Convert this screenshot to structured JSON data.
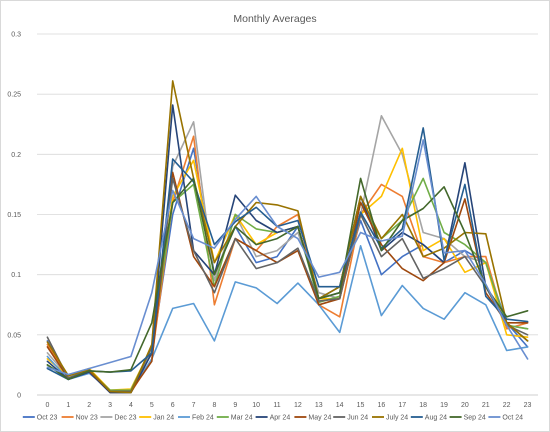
{
  "chart_data": {
    "type": "line",
    "title": "Monthly Averages",
    "xlabel": "",
    "ylabel": "",
    "x": [
      0,
      1,
      2,
      3,
      4,
      5,
      6,
      7,
      8,
      9,
      10,
      11,
      12,
      13,
      14,
      15,
      16,
      17,
      18,
      19,
      20,
      21,
      22,
      23
    ],
    "ylim": [
      0,
      0.3
    ],
    "yticks": [
      0,
      0.05,
      0.1,
      0.15,
      0.2,
      0.25,
      0.3
    ],
    "ytick_labels": [
      "0",
      "0.05",
      "0.1",
      "0.15",
      "0.2",
      "0.25",
      "0.3"
    ],
    "grid": true,
    "legend_position": "bottom",
    "series": [
      {
        "name": "Oct 23",
        "color": "#4472C4",
        "values": [
          0.045,
          0.014,
          0.02,
          0.002,
          0.002,
          0.035,
          0.15,
          0.205,
          0.1,
          0.14,
          0.11,
          0.115,
          0.14,
          0.08,
          0.085,
          0.145,
          0.1,
          0.115,
          0.125,
          0.11,
          0.12,
          0.11,
          0.06,
          0.04
        ]
      },
      {
        "name": "Nov 23",
        "color": "#ED7D31",
        "values": [
          0.042,
          0.016,
          0.02,
          0.002,
          0.002,
          0.03,
          0.16,
          0.215,
          0.075,
          0.13,
          0.12,
          0.14,
          0.15,
          0.075,
          0.065,
          0.15,
          0.175,
          0.165,
          0.115,
          0.11,
          0.115,
          0.115,
          0.055,
          0.06
        ]
      },
      {
        "name": "Dec 23",
        "color": "#A5A5A5",
        "values": [
          0.035,
          0.015,
          0.02,
          0.003,
          0.003,
          0.038,
          0.19,
          0.227,
          0.095,
          0.15,
          0.115,
          0.12,
          0.135,
          0.085,
          0.08,
          0.15,
          0.232,
          0.2,
          0.135,
          0.13,
          0.115,
          0.11,
          0.058,
          0.055
        ]
      },
      {
        "name": "Jan 24",
        "color": "#FFC000",
        "values": [
          0.03,
          0.016,
          0.022,
          0.004,
          0.005,
          0.04,
          0.165,
          0.195,
          0.11,
          0.15,
          0.125,
          0.135,
          0.14,
          0.08,
          0.08,
          0.15,
          0.165,
          0.205,
          0.12,
          0.13,
          0.102,
          0.11,
          0.05,
          0.048
        ]
      },
      {
        "name": "Feb 24",
        "color": "#5B9BD5",
        "values": [
          0.032,
          0.013,
          0.018,
          0.004,
          0.003,
          0.03,
          0.072,
          0.076,
          0.045,
          0.094,
          0.089,
          0.076,
          0.093,
          0.075,
          0.052,
          0.124,
          0.066,
          0.091,
          0.072,
          0.063,
          0.085,
          0.075,
          0.037,
          0.04
        ]
      },
      {
        "name": "Mar 24",
        "color": "#70AD47",
        "values": [
          0.025,
          0.014,
          0.02,
          0.004,
          0.004,
          0.04,
          0.16,
          0.175,
          0.09,
          0.15,
          0.138,
          0.135,
          0.14,
          0.077,
          0.082,
          0.16,
          0.13,
          0.145,
          0.18,
          0.135,
          0.125,
          0.11,
          0.058,
          0.055
        ]
      },
      {
        "name": "Apr 24",
        "color": "#264478",
        "values": [
          0.028,
          0.013,
          0.019,
          0.002,
          0.002,
          0.035,
          0.241,
          0.12,
          0.1,
          0.166,
          0.145,
          0.135,
          0.14,
          0.08,
          0.09,
          0.165,
          0.12,
          0.135,
          0.125,
          0.11,
          0.193,
          0.09,
          0.06,
          0.045
        ]
      },
      {
        "name": "May 24",
        "color": "#9E480E",
        "values": [
          0.04,
          0.014,
          0.02,
          0.003,
          0.003,
          0.028,
          0.185,
          0.115,
          0.09,
          0.13,
          0.12,
          0.11,
          0.12,
          0.075,
          0.08,
          0.16,
          0.125,
          0.105,
          0.095,
          0.11,
          0.163,
          0.085,
          0.06,
          0.06
        ]
      },
      {
        "name": "Jun 24",
        "color": "#636363",
        "values": [
          0.048,
          0.014,
          0.021,
          0.003,
          0.003,
          0.04,
          0.18,
          0.12,
          0.085,
          0.13,
          0.105,
          0.11,
          0.122,
          0.078,
          0.08,
          0.15,
          0.115,
          0.13,
          0.097,
          0.105,
          0.115,
          0.09,
          0.058,
          0.05
        ]
      },
      {
        "name": "July 24",
        "color": "#997300",
        "values": [
          0.044,
          0.016,
          0.021,
          0.003,
          0.002,
          0.042,
          0.261,
          0.18,
          0.11,
          0.14,
          0.16,
          0.158,
          0.153,
          0.08,
          0.09,
          0.165,
          0.13,
          0.15,
          0.115,
          0.122,
          0.135,
          0.134,
          0.06,
          0.045
        ]
      },
      {
        "name": "Aug 24",
        "color": "#255E91",
        "values": [
          0.022,
          0.013,
          0.02,
          0.019,
          0.02,
          0.035,
          0.196,
          0.177,
          0.125,
          0.144,
          0.156,
          0.14,
          0.145,
          0.09,
          0.09,
          0.152,
          0.122,
          0.138,
          0.222,
          0.112,
          0.175,
          0.082,
          0.063,
          0.061
        ]
      },
      {
        "name": "Sep 24",
        "color": "#43682B",
        "values": [
          0.025,
          0.013,
          0.02,
          0.019,
          0.021,
          0.06,
          0.16,
          0.18,
          0.1,
          0.14,
          0.125,
          0.13,
          0.14,
          0.08,
          0.085,
          0.18,
          0.12,
          0.145,
          0.155,
          0.173,
          0.135,
          0.09,
          0.065,
          0.07
        ]
      },
      {
        "name": "Oct 24",
        "color": "#698ED0",
        "values": [
          0.023,
          0.017,
          0.022,
          0.027,
          0.032,
          0.085,
          0.17,
          0.13,
          0.122,
          0.146,
          0.165,
          0.14,
          0.13,
          0.098,
          0.102,
          0.135,
          0.128,
          0.132,
          0.212,
          0.118,
          0.12,
          0.092,
          0.058,
          0.03
        ]
      }
    ]
  }
}
